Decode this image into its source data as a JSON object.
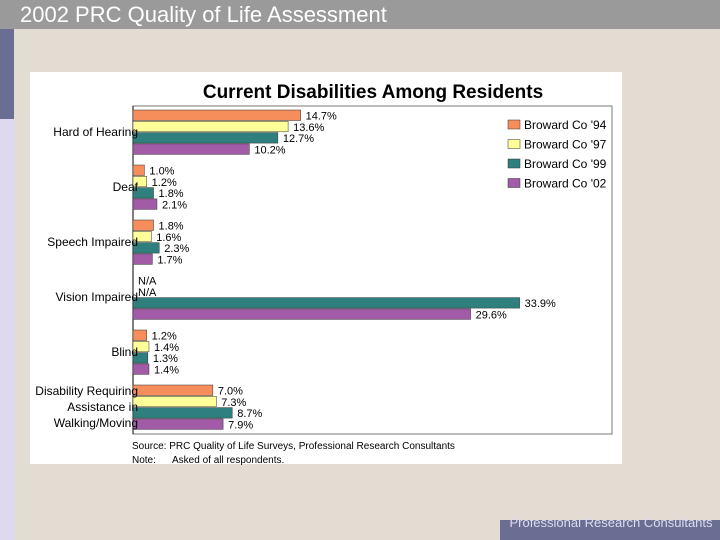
{
  "header": {
    "title": "2002 PRC Quality of Life Assessment"
  },
  "footer": {
    "text": "Professional Research Consultants"
  },
  "colors": {
    "series": [
      "#f58e5a",
      "#ffff99",
      "#2e7f7e",
      "#a25ba7"
    ]
  },
  "chart_data": {
    "type": "bar",
    "orientation": "horizontal",
    "title": "Current Disabilities Among Residents",
    "categories": [
      "Hard of Hearing",
      "Deaf",
      "Speech Impaired",
      "Vision Impaired",
      "Blind",
      "Disability Requiring Assistance in Walking/Moving"
    ],
    "category_lines": [
      [
        "Hard of Hearing"
      ],
      [
        "Deaf"
      ],
      [
        "Speech Impaired"
      ],
      [
        "Vision Impaired"
      ],
      [
        "Blind"
      ],
      [
        "Disability Requiring",
        "Assistance in",
        "Walking/Moving"
      ]
    ],
    "series": [
      {
        "name": "Broward Co '94",
        "values": [
          14.7,
          1.0,
          1.8,
          null,
          1.2,
          7.0
        ],
        "labels": [
          "14.7%",
          "1.0%",
          "1.8%",
          "N/A",
          "1.2%",
          "7.0%"
        ]
      },
      {
        "name": "Broward Co '97",
        "values": [
          13.6,
          1.2,
          1.6,
          null,
          1.4,
          7.3
        ],
        "labels": [
          "13.6%",
          "1.2%",
          "1.6%",
          "N/A",
          "1.4%",
          "7.3%"
        ]
      },
      {
        "name": "Broward Co '99",
        "values": [
          12.7,
          1.8,
          2.3,
          33.9,
          1.3,
          8.7
        ],
        "labels": [
          "12.7%",
          "1.8%",
          "2.3%",
          "33.9%",
          "1.3%",
          "8.7%"
        ]
      },
      {
        "name": "Broward Co '02",
        "values": [
          10.2,
          2.1,
          1.7,
          29.6,
          1.4,
          7.9
        ],
        "labels": [
          "10.2%",
          "2.1%",
          "1.7%",
          "29.6%",
          "1.4%",
          "7.9%"
        ]
      }
    ],
    "xlim": [
      0,
      42
    ],
    "legend": "top-right",
    "grid": false,
    "source": "Source: PRC Quality of Life Surveys, Professional Research Consultants",
    "note_label": "Note:",
    "note": "Asked of all respondents."
  }
}
